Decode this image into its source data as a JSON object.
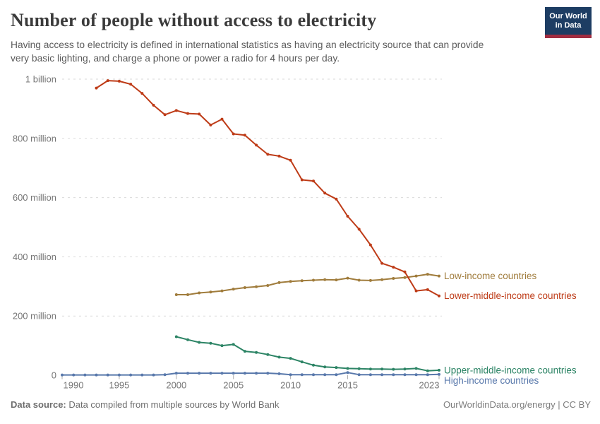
{
  "header": {
    "title": "Number of people without access to electricity",
    "subtitle": {
      "line1": "Having access to electricity is defined in international statistics as having an electricity source that can provide",
      "line2": "very basic lighting, and charge a phone or power a radio for 4 hours per day."
    },
    "logo": {
      "line1": "Our World",
      "line2": "in Data",
      "bg_color": "#1d3d63",
      "stripe_color": "#a12d41"
    }
  },
  "footer": {
    "source_label": "Data source:",
    "source_text": " Data compiled from multiple sources by World Bank",
    "right_text": "OurWorldinData.org/energy | CC BY"
  },
  "chart_data": {
    "type": "line",
    "title": "Number of people without access to electricity",
    "xlabel": "",
    "ylabel": "",
    "unit": "people",
    "values_unit": "millions",
    "xlim": [
      1990,
      2023
    ],
    "ylim_millions": [
      0,
      1000
    ],
    "grid": "horizontal-dashed",
    "legend_position": "end-of-line",
    "markers": "point-per-year",
    "x_ticks": [
      1990,
      1995,
      2000,
      2005,
      2010,
      2015,
      2023
    ],
    "y_ticks": [
      {
        "value": 1000,
        "label": "1 billion"
      },
      {
        "value": 800,
        "label": "800 million"
      },
      {
        "value": 600,
        "label": "600 million"
      },
      {
        "value": 400,
        "label": "400 million"
      },
      {
        "value": 200,
        "label": "200 million"
      },
      {
        "value": 0,
        "label": "0"
      }
    ],
    "series": [
      {
        "name": "Low-income countries",
        "color": "#a07c3c",
        "start_year": 2000,
        "end_year": 2023,
        "values": [
          272,
          272,
          278,
          281,
          285,
          291,
          296,
          299,
          303,
          313,
          317,
          319,
          321,
          323,
          322,
          328,
          321,
          320,
          323,
          327,
          330,
          335,
          341,
          335
        ]
      },
      {
        "name": "Lower-middle-income countries",
        "color": "#be3b17",
        "start_year": 1993,
        "end_year": 2023,
        "values": [
          970,
          995,
          993,
          983,
          952,
          912,
          880,
          894,
          884,
          882,
          845,
          865,
          815,
          811,
          777,
          746,
          740,
          726,
          660,
          656,
          615,
          595,
          537,
          493,
          440,
          378,
          365,
          349,
          285,
          289,
          268
        ]
      },
      {
        "name": "Upper-middle-income countries",
        "color": "#2c8465",
        "start_year": 2000,
        "end_year": 2023,
        "values": [
          130,
          120,
          111,
          108,
          100,
          104,
          81,
          77,
          70,
          61,
          57,
          45,
          34,
          28,
          26,
          23,
          22,
          21,
          21,
          20,
          21,
          23,
          15,
          17
        ]
      },
      {
        "name": "High-income countries",
        "color": "#5878ab",
        "start_year": 1990,
        "end_year": 2023,
        "values": [
          1,
          1,
          1,
          1,
          1,
          1,
          1,
          1,
          1,
          2,
          7,
          7,
          7,
          7,
          7,
          7,
          7,
          7,
          7,
          5,
          2,
          2,
          2,
          2,
          2,
          9,
          2,
          2,
          2,
          2,
          2,
          2,
          2,
          3
        ]
      }
    ]
  }
}
